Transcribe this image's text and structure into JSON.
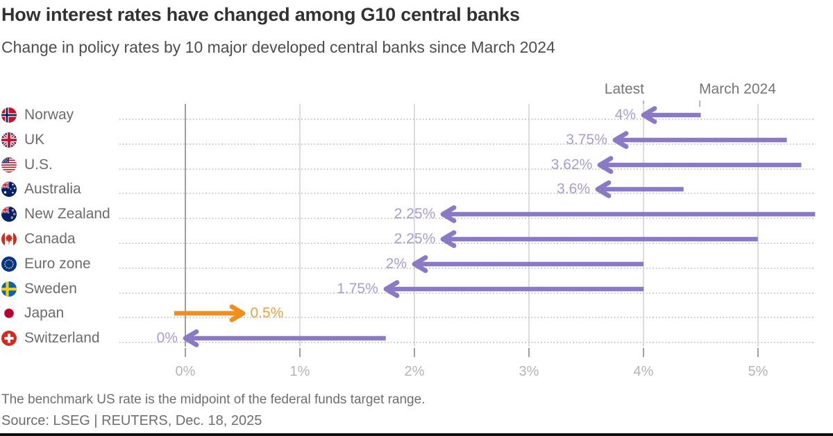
{
  "header": {
    "title": "How interest rates have changed among G10 central banks",
    "subtitle": "Change in policy rates by 10 major developed central banks since March 2024"
  },
  "chart_data": {
    "type": "arrow",
    "title": "How interest rates have changed among G10 central banks",
    "subtitle": "Change in policy rates by 10 major developed central banks since March 2024",
    "x_axis": {
      "tick_labels": [
        "0%",
        "1%",
        "2%",
        "3%",
        "4%",
        "5%"
      ],
      "tick_values": [
        0,
        1,
        2,
        3,
        4,
        5
      ],
      "xlim": [
        -0.6,
        5.5
      ],
      "unit": "percent",
      "grid": true
    },
    "legend": {
      "latest": "Latest",
      "march": "March 2024"
    },
    "colors": {
      "cut_arrow": "#8a7ac6",
      "cut_label": "#a79dd6",
      "hike_arrow": "#f28e1d",
      "hike_label": "#f49c42"
    },
    "rows": [
      {
        "country": "Norway",
        "flag": "norway",
        "latest": 4,
        "latest_label": "4%",
        "march_2024": 4.5,
        "direction": "cut"
      },
      {
        "country": "UK",
        "flag": "uk",
        "latest": 3.75,
        "latest_label": "3.75%",
        "march_2024": 5.25,
        "direction": "cut"
      },
      {
        "country": "U.S.",
        "flag": "us",
        "latest": 3.62,
        "latest_label": "3.62%",
        "march_2024": 5.38,
        "direction": "cut"
      },
      {
        "country": "Australia",
        "flag": "australia",
        "latest": 3.6,
        "latest_label": "3.6%",
        "march_2024": 4.35,
        "direction": "cut"
      },
      {
        "country": "New Zealand",
        "flag": "new-zealand",
        "latest": 2.25,
        "latest_label": "2.25%",
        "march_2024": 5.5,
        "direction": "cut"
      },
      {
        "country": "Canada",
        "flag": "canada",
        "latest": 2.25,
        "latest_label": "2.25%",
        "march_2024": 5,
        "direction": "cut"
      },
      {
        "country": "Euro zone",
        "flag": "euro-zone",
        "latest": 2,
        "latest_label": "2%",
        "march_2024": 4,
        "direction": "cut"
      },
      {
        "country": "Sweden",
        "flag": "sweden",
        "latest": 1.75,
        "latest_label": "1.75%",
        "march_2024": 4,
        "direction": "cut"
      },
      {
        "country": "Japan",
        "flag": "japan",
        "latest": 0.5,
        "latest_label": "0.5%",
        "march_2024": -0.1,
        "direction": "hike"
      },
      {
        "country": "Switzerland",
        "flag": "switzerland",
        "latest": 0,
        "latest_label": "0%",
        "march_2024": 1.75,
        "direction": "cut"
      }
    ]
  },
  "footer": {
    "footnote": "The benchmark US rate is the midpoint of the federal funds target range.",
    "source": "Source: LSEG | REUTERS, Dec. 18, 2025"
  }
}
